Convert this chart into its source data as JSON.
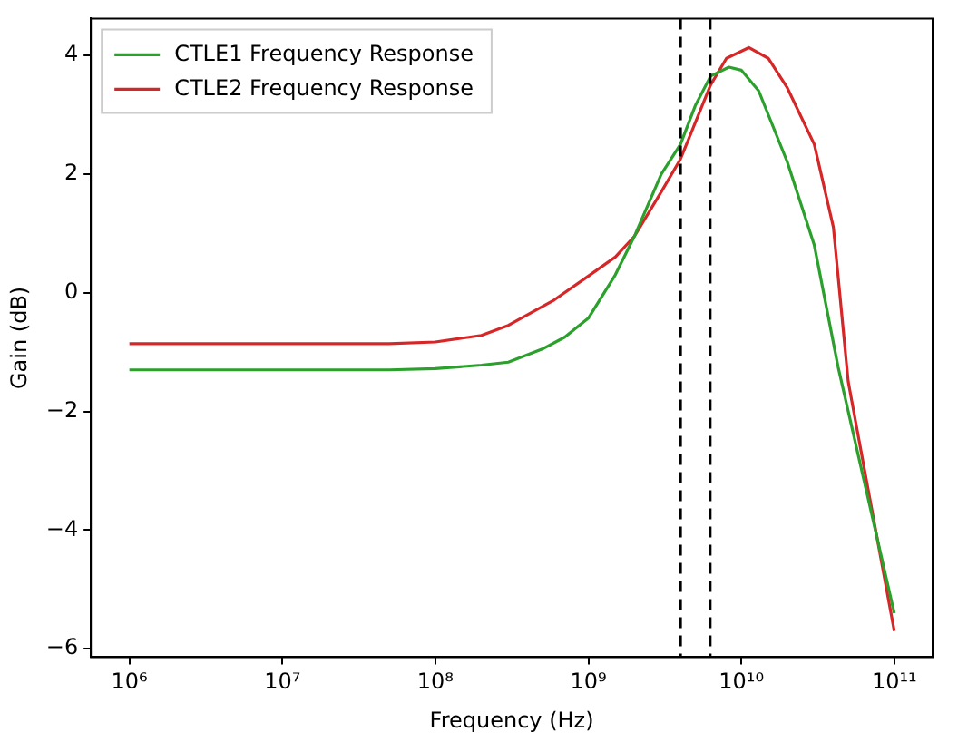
{
  "chart_data": {
    "type": "line",
    "xlabel": "Frequency (Hz)",
    "ylabel": "Gain (dB)",
    "log": "x",
    "grid": false,
    "legend": "top left",
    "marker": "none",
    "line_style": "solid",
    "xlim": [
      560000,
      178000000000
    ],
    "ylim": [
      -6.14,
      4.62
    ],
    "xticks": [
      {
        "value": 1000000,
        "label": "10⁶"
      },
      {
        "value": 10000000,
        "label": "10⁷"
      },
      {
        "value": 100000000,
        "label": "10⁸"
      },
      {
        "value": 1000000000,
        "label": "10⁹"
      },
      {
        "value": 10000000000,
        "label": "10¹⁰"
      },
      {
        "value": 100000000000,
        "label": "10¹¹"
      }
    ],
    "yticks": [
      -6,
      -4,
      -2,
      0,
      2,
      4
    ],
    "series": [
      {
        "name": "CTLE1 Frequency Response",
        "color": "#2ca02c",
        "x": [
          1000000,
          10000000,
          50000000,
          100000000,
          200000000,
          300000000,
          500000000,
          700000000,
          1000000000,
          1500000000,
          2000000000,
          3000000000,
          4000000000,
          5000000000,
          6300000000,
          8300000000,
          10000000000,
          13000000000,
          20000000000,
          30000000000,
          43000000000,
          100000000000
        ],
        "values": [
          -1.3,
          -1.3,
          -1.3,
          -1.28,
          -1.22,
          -1.17,
          -0.95,
          -0.75,
          -0.43,
          0.3,
          0.95,
          2.0,
          2.5,
          3.15,
          3.65,
          3.8,
          3.75,
          3.4,
          2.2,
          0.8,
          -1.26,
          -5.4
        ]
      },
      {
        "name": "CTLE2 Frequency Response",
        "color": "#d62728",
        "x": [
          1000000,
          10000000,
          50000000,
          100000000,
          200000000,
          300000000,
          600000000,
          1000000000,
          1500000000,
          2000000000,
          3000000000,
          4000000000,
          6300000000,
          8000000000,
          11200000000,
          15000000000,
          20000000000,
          30000000000,
          40000000000,
          50000000000,
          100000000000
        ],
        "values": [
          -0.86,
          -0.86,
          -0.86,
          -0.83,
          -0.72,
          -0.55,
          -0.12,
          0.28,
          0.6,
          0.95,
          1.7,
          2.25,
          3.5,
          3.95,
          4.13,
          3.95,
          3.45,
          2.5,
          1.1,
          -1.5,
          -5.7
        ]
      }
    ],
    "ref_lines": [
      {
        "axis": "x",
        "value": 4000000000,
        "color": "#000000",
        "line_style": "dashed"
      },
      {
        "axis": "x",
        "value": 6250000000,
        "color": "#000000",
        "line_style": "dashed"
      }
    ]
  }
}
